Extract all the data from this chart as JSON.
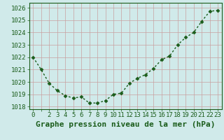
{
  "x": [
    0,
    1,
    2,
    3,
    4,
    5,
    6,
    7,
    8,
    9,
    10,
    11,
    12,
    13,
    14,
    15,
    16,
    17,
    18,
    19,
    20,
    21,
    22,
    23
  ],
  "y": [
    1022.0,
    1021.0,
    1019.9,
    1019.3,
    1018.9,
    1018.7,
    1018.8,
    1018.3,
    1018.3,
    1018.5,
    1019.0,
    1019.1,
    1019.9,
    1020.3,
    1020.6,
    1021.1,
    1021.8,
    1022.1,
    1023.0,
    1023.6,
    1024.0,
    1024.9,
    1025.7,
    1025.8
  ],
  "line_color": "#1a5c1a",
  "marker": "D",
  "marker_size": 2.5,
  "bg_color": "#d0eaea",
  "grid_color": "#c8a0a0",
  "xlabel": "Graphe pression niveau de la mer (hPa)",
  "xlabel_fontsize": 8,
  "xlabel_color": "#1a5c1a",
  "ylabel_ticks": [
    1018,
    1019,
    1020,
    1021,
    1022,
    1023,
    1024,
    1025,
    1026
  ],
  "ylim": [
    1017.8,
    1026.4
  ],
  "xlim": [
    -0.5,
    23.5
  ],
  "xtick_labels": [
    "0",
    "",
    "2",
    "3",
    "4",
    "5",
    "6",
    "7",
    "8",
    "9",
    "10",
    "11",
    "12",
    "13",
    "14",
    "15",
    "16",
    "17",
    "18",
    "19",
    "20",
    "21",
    "22",
    "23"
  ],
  "tick_color": "#1a5c1a",
  "tick_fontsize": 6.5,
  "spine_color": "#1a5c1a",
  "linewidth": 1.0
}
